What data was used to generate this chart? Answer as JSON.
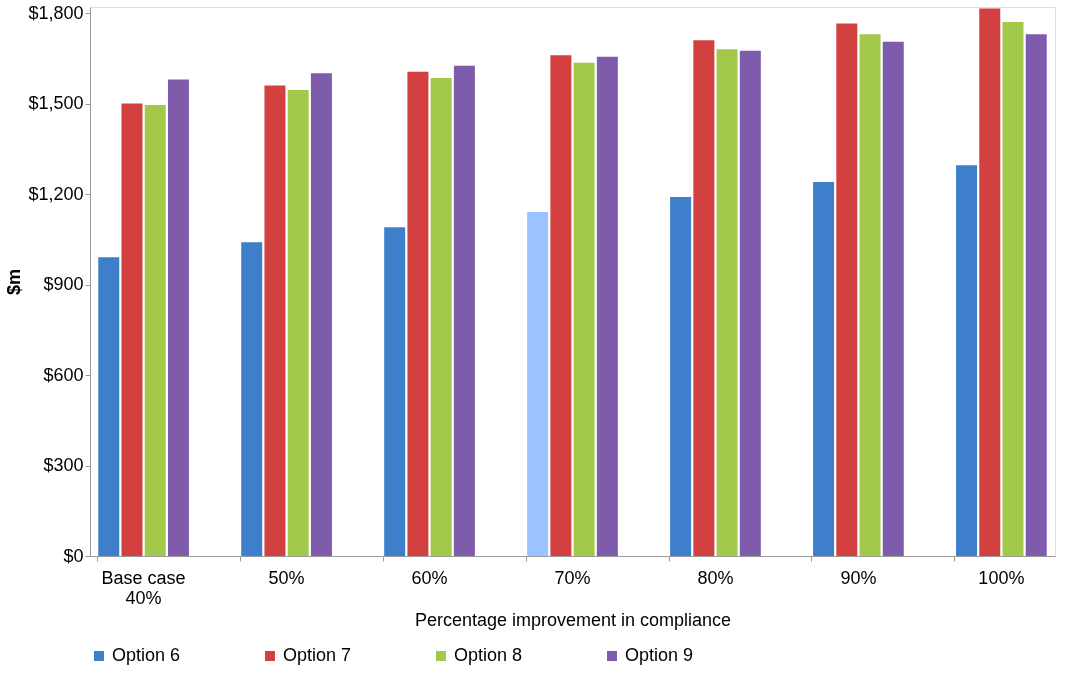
{
  "chart_data": {
    "type": "bar",
    "xlabel": "Percentage improvement in compliance",
    "ylabel": "$m",
    "categories": [
      "Base case\n40%",
      "50%",
      "60%",
      "70%",
      "80%",
      "90%",
      "100%"
    ],
    "series": [
      {
        "name": "Option 6",
        "color": "#3e7fcc",
        "colors": [
          "#3e7fcc",
          "#3e7fcc",
          "#3e7fcc",
          "#9cc2ff",
          "#3e7fcc",
          "#3e7fcc",
          "#3e7fcc"
        ],
        "values": [
          990,
          1040,
          1090,
          1140,
          1190,
          1240,
          1295
        ]
      },
      {
        "name": "Option 7",
        "color": "#d24040",
        "values": [
          1500,
          1560,
          1605,
          1660,
          1710,
          1765,
          1815
        ]
      },
      {
        "name": "Option 8",
        "color": "#a2c94b",
        "values": [
          1495,
          1545,
          1585,
          1635,
          1680,
          1730,
          1770
        ]
      },
      {
        "name": "Option 9",
        "color": "#7e5cab",
        "values": [
          1580,
          1600,
          1625,
          1655,
          1675,
          1705,
          1730
        ]
      }
    ],
    "ylim": [
      0,
      1820
    ],
    "yticks": [
      {
        "value": 0,
        "label": "$0"
      },
      {
        "value": 300,
        "label": "$300"
      },
      {
        "value": 600,
        "label": "$600"
      },
      {
        "value": 900,
        "label": "$900"
      },
      {
        "value": 1200,
        "label": "$1,200"
      },
      {
        "value": 1500,
        "label": "$1,500"
      },
      {
        "value": 1800,
        "label": "$1,800"
      }
    ],
    "grid": false,
    "legend": "bottom"
  }
}
